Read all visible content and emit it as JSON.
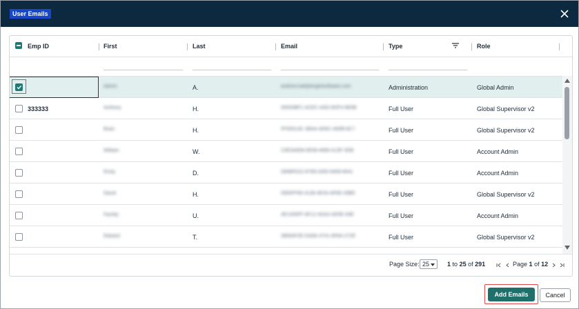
{
  "dialog": {
    "title": "User Emails"
  },
  "table": {
    "columns": [
      "Emp ID",
      "First",
      "Last",
      "Email",
      "Type",
      "Role"
    ],
    "rows": [
      [
        "",
        "Admin",
        "A.",
        "andrew.hall@brightsoftware.com",
        "Administration",
        "Global Admin"
      ],
      [
        "333333",
        "Anthony",
        "H.",
        "00000BF1-4CEC-4462-B2F4-9E6B",
        "Full User",
        "Global Supervisor v2"
      ],
      [
        "",
        "Brian",
        "H.",
        "FF00514C-3B4A-4D6C-A60B-8C7",
        "Full User",
        "Global Supervisor v2"
      ],
      [
        "",
        "William",
        "W.",
        "C9E3A858-0E08-4666-A13F-3DB",
        "Full User",
        "Account Admin"
      ],
      [
        "",
        "Emily",
        "D.",
        "D868FA22-8789-4300-9408-8041",
        "Full User",
        "Account Admin"
      ],
      [
        "",
        "David",
        "H.",
        "0950FF90-4138-4E43-AF8D-39B5",
        "Full User",
        "Global Supervisor v2"
      ],
      [
        "",
        "Facility",
        "U.",
        "4E1000FF-8F12-4DA3-AE5E-63E",
        "Full User",
        "Account Admin"
      ],
      [
        "",
        "Edward",
        "T.",
        "38994F2E-DA9A-4741-855A-272E",
        "Full User",
        "Global Supervisor v2"
      ]
    ]
  },
  "pagination": {
    "page_size_label": "Page Size:",
    "page_size": "25",
    "from": "1",
    "to_word": "to",
    "to": "25",
    "of_word": "of",
    "total": "291",
    "page_word": "Page",
    "page": "1",
    "pages_of_word": "of",
    "pages": "12"
  },
  "buttons": {
    "add": "Add Emails",
    "cancel": "Cancel"
  }
}
